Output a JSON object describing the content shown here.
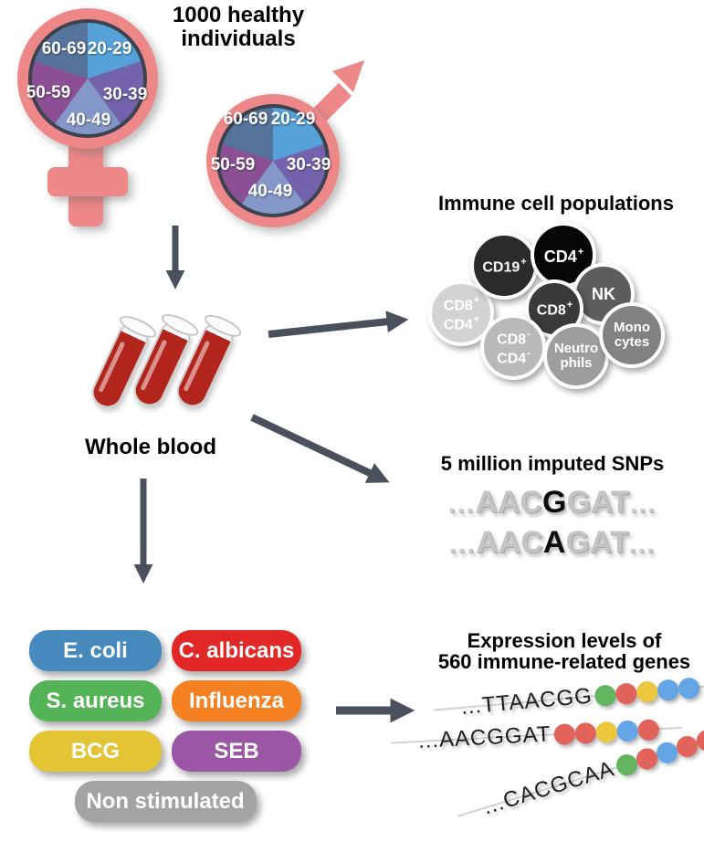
{
  "study": {
    "title": "1000 healthy individuals"
  },
  "demographics": {
    "age_groups": [
      "20-29",
      "30-39",
      "40-49",
      "50-59",
      "60-69"
    ],
    "slice_colors": [
      "#55a1d8",
      "#7263ac",
      "#8497c9",
      "#8b5094",
      "#56739b"
    ],
    "symbol_color": "#ee8787"
  },
  "blood": {
    "label": "Whole blood"
  },
  "immune": {
    "title": "Immune cell populations",
    "cells": [
      {
        "id": "cd8pos-cd4pos",
        "color": "#d3d3d3",
        "lines": [
          {
            "t": "CD8",
            "s": "+"
          },
          {
            "t": "CD4",
            "s": "+"
          }
        ]
      },
      {
        "id": "cd19pos",
        "color": "#2b2b2b",
        "lines": [
          {
            "t": "CD19",
            "s": "+"
          }
        ]
      },
      {
        "id": "cd4pos",
        "color": "#060606",
        "lines": [
          {
            "t": "CD4",
            "s": "+"
          }
        ]
      },
      {
        "id": "nk",
        "color": "#5d5d5d",
        "lines": [
          {
            "t": "NK",
            "s": ""
          }
        ]
      },
      {
        "id": "cd8pos",
        "color": "#3a3a3a",
        "lines": [
          {
            "t": "CD8",
            "s": "+"
          }
        ]
      },
      {
        "id": "cd8neg-cd4neg",
        "color": "#b9b9b9",
        "lines": [
          {
            "t": "CD8",
            "s": "-"
          },
          {
            "t": "CD4",
            "s": "-"
          }
        ]
      },
      {
        "id": "neutrophils",
        "color": "#9d9d9d",
        "lines": [
          {
            "t": "Neutro",
            "s": ""
          },
          {
            "t": "phils",
            "s": ""
          }
        ]
      },
      {
        "id": "monocytes",
        "color": "#828282",
        "lines": [
          {
            "t": "Mono",
            "s": ""
          },
          {
            "t": "cytes",
            "s": ""
          }
        ]
      }
    ]
  },
  "snps": {
    "title": "5 million imputed SNPs",
    "sequences": [
      {
        "prefix": "...",
        "before": "AAC",
        "snp": "G",
        "after": "GAT",
        "suffix": "..."
      },
      {
        "prefix": "...",
        "before": "AAC",
        "snp": "A",
        "after": "GAT",
        "suffix": "..."
      }
    ]
  },
  "stimuli": {
    "items": [
      {
        "id": "ecoli",
        "label": "E. coli",
        "color": "#4589bd"
      },
      {
        "id": "calbicans",
        "label": "C. albicans",
        "color": "#e22827"
      },
      {
        "id": "saureus",
        "label": "S. aureus",
        "color": "#54b257"
      },
      {
        "id": "influenza",
        "label": "Influenza",
        "color": "#f58022"
      },
      {
        "id": "bcg",
        "label": "BCG",
        "color": "#e2c434"
      },
      {
        "id": "seb",
        "label": "SEB",
        "color": "#9b57a5"
      },
      {
        "id": "nonstim",
        "label": "Non stimulated",
        "color": "#a3a3a3"
      }
    ]
  },
  "expression": {
    "title_line1": "Expression levels of",
    "title_line2": "560 immune-related genes",
    "dot_colors": {
      "green": "#62b45e",
      "red": "#e2635c",
      "yellow": "#edc73e",
      "blue": "#63a5e5"
    },
    "strands": [
      {
        "seq": "...TTAACGG",
        "dots": [
          "green",
          "red",
          "yellow",
          "blue",
          "blue"
        ]
      },
      {
        "seq": "...AACGGAT",
        "dots": [
          "red",
          "red",
          "yellow",
          "blue",
          "red"
        ]
      },
      {
        "seq": "...CACGCAA",
        "dots": [
          "green",
          "red",
          "blue",
          "red",
          "red"
        ]
      }
    ]
  },
  "theme": {
    "arrow_color": "#4a515d",
    "symbol_pink": "#ee8787",
    "pie_ring": "#3d434e",
    "blood_red": "#b2251c"
  }
}
